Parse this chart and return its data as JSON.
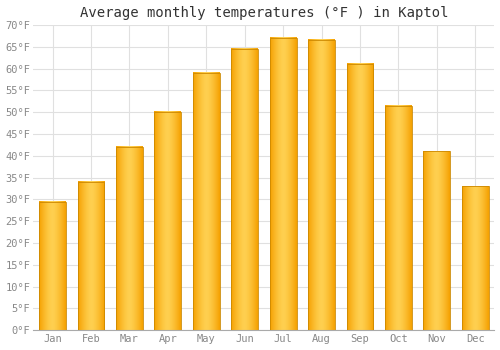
{
  "title": "Average monthly temperatures (°F ) in Kaptol",
  "months": [
    "Jan",
    "Feb",
    "Mar",
    "Apr",
    "May",
    "Jun",
    "Jul",
    "Aug",
    "Sep",
    "Oct",
    "Nov",
    "Dec"
  ],
  "values": [
    29.5,
    34.0,
    42.0,
    50.0,
    59.0,
    64.5,
    67.0,
    66.5,
    61.0,
    51.5,
    41.0,
    33.0
  ],
  "bar_color_light": "#FFD050",
  "bar_color_dark": "#F5A000",
  "bar_edge_color": "#CC8800",
  "ylim": [
    0,
    70
  ],
  "yticks": [
    0,
    5,
    10,
    15,
    20,
    25,
    30,
    35,
    40,
    45,
    50,
    55,
    60,
    65,
    70
  ],
  "background_color": "#ffffff",
  "plot_bg_color": "#ffffff",
  "grid_color": "#e0e0e0",
  "title_fontsize": 10,
  "tick_fontsize": 7.5,
  "font_family": "monospace",
  "tick_color": "#888888",
  "bar_width": 0.7
}
